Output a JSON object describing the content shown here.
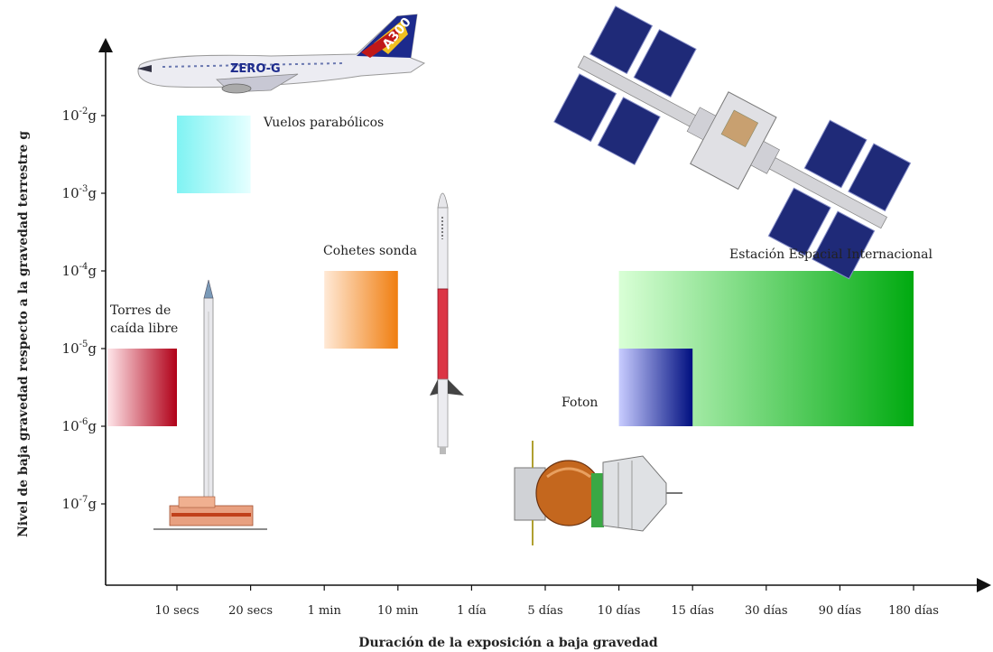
{
  "chart_data": {
    "type": "bar",
    "xlabel": "Duración de la exposición a baja gravedad",
    "ylabel": "Nivel de baja gravedad respecto a la gravedad terrestre g",
    "x_categories": [
      "10 secs",
      "20 secs",
      "1 min",
      "10 min",
      "1 día",
      "5 días",
      "10 días",
      "15 días",
      "30 días",
      "90 días",
      "180 días"
    ],
    "y_ticks": [
      {
        "base": "10",
        "exp": "-2",
        "unit": "g"
      },
      {
        "base": "10",
        "exp": "-3",
        "unit": "g"
      },
      {
        "base": "10",
        "exp": "-4",
        "unit": "g"
      },
      {
        "base": "10",
        "exp": "-5",
        "unit": "g"
      },
      {
        "base": "10",
        "exp": "-6",
        "unit": "g"
      },
      {
        "base": "10",
        "exp": "-7",
        "unit": "g"
      }
    ],
    "y_scale": "log",
    "y_range_exponents": [
      -8,
      -1.2
    ],
    "regions": [
      {
        "name": "Torres de caída libre",
        "label_lines": [
          "Torres de",
          "caída libre"
        ],
        "x_start": "inicio",
        "x_end": "10 secs",
        "y_min_exp": -6,
        "y_max_exp": -5,
        "color_from": "#ffe6ea",
        "color_to": "#b00018"
      },
      {
        "name": "Vuelos parabólicos",
        "label_lines": [
          "Vuelos parabólicos"
        ],
        "x_start": "10 secs",
        "x_end": "20 secs",
        "y_min_exp": -3,
        "y_max_exp": -2,
        "color_from": "#7ff3f3",
        "color_to": "#e6ffff"
      },
      {
        "name": "Cohetes sonda",
        "label_lines": [
          "Cohetes sonda"
        ],
        "x_start": "1 min",
        "x_end": "10 min",
        "y_min_exp": -5,
        "y_max_exp": -4,
        "color_from": "#ffe9d6",
        "color_to": "#f07e10"
      },
      {
        "name": "Estación Espacial Internacional",
        "label_lines": [
          "Estación Espacial Internacional"
        ],
        "x_start": "10 días",
        "x_end": "180 días",
        "y_min_exp": -6,
        "y_max_exp": -4,
        "color_from": "#d9ffd6",
        "color_to": "#00aa10"
      },
      {
        "name": "Foton",
        "label_lines": [
          "Foton"
        ],
        "x_start": "10 días",
        "x_end": "15 días",
        "y_min_exp": -6,
        "y_max_exp": -5,
        "color_from": "#c8ccff",
        "color_to": "#000f80"
      }
    ],
    "illustrations": [
      "airplane-icon",
      "rocket-icon",
      "drop-tower-icon",
      "space-station-icon",
      "capsule-icon"
    ],
    "airplane_markings": [
      "ZERO-G",
      "A300"
    ],
    "grid": false,
    "legend": "none"
  }
}
